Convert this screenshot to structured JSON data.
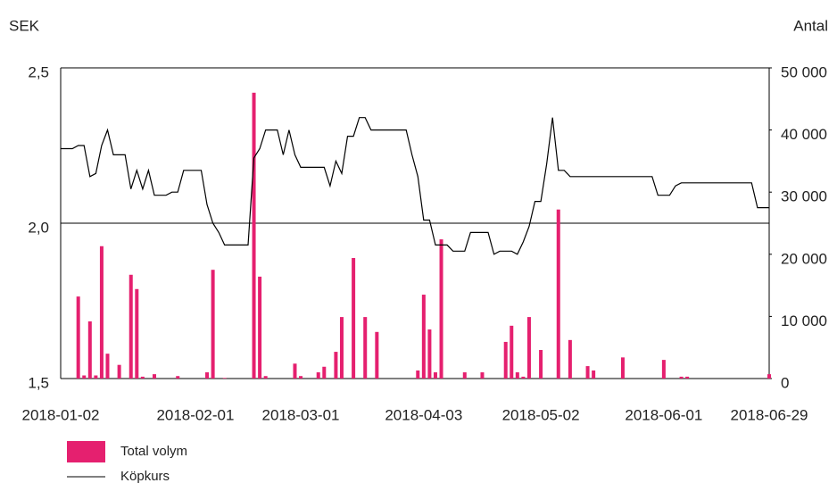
{
  "chart_data": {
    "type": "bar",
    "y_label": "SEK",
    "y2_label": "Antal",
    "categories": [
      "2018-01-02",
      null,
      null,
      null,
      null,
      null,
      null,
      null,
      null,
      null,
      null,
      null,
      null,
      null,
      null,
      null,
      null,
      null,
      null,
      null,
      null,
      null,
      null,
      "2018-02-01",
      null,
      null,
      null,
      null,
      null,
      null,
      null,
      null,
      null,
      null,
      null,
      null,
      null,
      null,
      null,
      null,
      null,
      "2018-03-01",
      null,
      null,
      null,
      null,
      null,
      null,
      null,
      null,
      null,
      null,
      null,
      null,
      null,
      null,
      null,
      null,
      null,
      null,
      null,
      null,
      "2018-04-03",
      null,
      null,
      null,
      null,
      null,
      null,
      null,
      null,
      null,
      null,
      null,
      null,
      null,
      null,
      null,
      null,
      null,
      null,
      null,
      "2018-05-02",
      null,
      null,
      null,
      null,
      null,
      null,
      null,
      null,
      null,
      null,
      null,
      null,
      null,
      null,
      null,
      null,
      null,
      null,
      null,
      null,
      "2018-06-01",
      null,
      null,
      null,
      null,
      null,
      null,
      null,
      null,
      null,
      null,
      null,
      null,
      null,
      null,
      null,
      null,
      null,
      "2018-06-29"
    ],
    "series": [
      {
        "name": "Total volym",
        "type": "bar",
        "color": "#e5206f",
        "axis": "y2",
        "values": [
          0,
          0,
          0,
          13200,
          500,
          9200,
          500,
          21300,
          4000,
          0,
          2200,
          0,
          16700,
          14400,
          300,
          0,
          700,
          0,
          0,
          0,
          400,
          0,
          0,
          0,
          0,
          1000,
          17500,
          0,
          100,
          0,
          0,
          0,
          0,
          46000,
          16400,
          400,
          0,
          0,
          0,
          0,
          2400,
          400,
          0,
          0,
          1000,
          1900,
          0,
          4300,
          9900,
          0,
          19400,
          0,
          9900,
          0,
          7500,
          0,
          0,
          0,
          0,
          0,
          0,
          1300,
          13500,
          7900,
          1000,
          22400,
          0,
          0,
          0,
          1000,
          0,
          0,
          1000,
          0,
          0,
          0,
          5900,
          8500,
          1000,
          300,
          9900,
          0,
          4600,
          0,
          0,
          27200,
          0,
          6200,
          0,
          0,
          2000,
          1300,
          0,
          0,
          0,
          0,
          3400,
          0,
          0,
          0,
          0,
          0,
          0,
          3000,
          0,
          0,
          300,
          300,
          0,
          0,
          0,
          0,
          0,
          0,
          0,
          0,
          0,
          0,
          0,
          0,
          0,
          700
        ]
      },
      {
        "name": "Köpkurs",
        "type": "line",
        "color": "#000000",
        "values": [
          2.24,
          2.24,
          2.24,
          2.25,
          2.25,
          2.15,
          2.16,
          2.25,
          2.3,
          2.22,
          2.22,
          2.22,
          2.11,
          2.17,
          2.11,
          2.17,
          2.09,
          2.09,
          2.09,
          2.1,
          2.1,
          2.17,
          2.17,
          2.17,
          2.17,
          2.06,
          2.0,
          1.97,
          1.93,
          1.93,
          1.93,
          1.93,
          1.93,
          2.21,
          2.24,
          2.3,
          2.3,
          2.3,
          2.22,
          2.3,
          2.22,
          2.18,
          2.18,
          2.18,
          2.18,
          2.18,
          2.12,
          2.2,
          2.16,
          2.28,
          2.28,
          2.34,
          2.34,
          2.3,
          2.3,
          2.3,
          2.3,
          2.3,
          2.3,
          2.3,
          2.22,
          2.15,
          2.01,
          2.01,
          1.93,
          1.93,
          1.93,
          1.91,
          1.91,
          1.91,
          1.97,
          1.97,
          1.97,
          1.97,
          1.9,
          1.91,
          1.91,
          1.91,
          1.9,
          1.94,
          1.99,
          2.07,
          2.07,
          2.19,
          2.34,
          2.17,
          2.17,
          2.15,
          2.15,
          2.15,
          2.15,
          2.15,
          2.15,
          2.15,
          2.15,
          2.15,
          2.15,
          2.15,
          2.15,
          2.15,
          2.15,
          2.15,
          2.09,
          2.09,
          2.09,
          2.12,
          2.13,
          2.13,
          2.13,
          2.13,
          2.13,
          2.13,
          2.13,
          2.13,
          2.13,
          2.13,
          2.13,
          2.13,
          2.13,
          2.05,
          2.05,
          2.05
        ]
      }
    ],
    "ylim": [
      1.5,
      2.5
    ],
    "yticks": [
      {
        "value": 1.5,
        "label": "1,5"
      },
      {
        "value": 2.0,
        "label": "2,0"
      },
      {
        "value": 2.5,
        "label": "2,5"
      }
    ],
    "y2lim": [
      0,
      50000
    ],
    "y2ticks": [
      0,
      {
        "value": 10000,
        "label": "10 000"
      },
      {
        "value": 20000,
        "label": "20 000"
      },
      {
        "value": 30000,
        "label": "30 000"
      },
      {
        "value": 40000,
        "label": "40 000"
      },
      {
        "value": 50000,
        "label": "50 000"
      }
    ],
    "grid": true,
    "legend": "bottom-left"
  }
}
